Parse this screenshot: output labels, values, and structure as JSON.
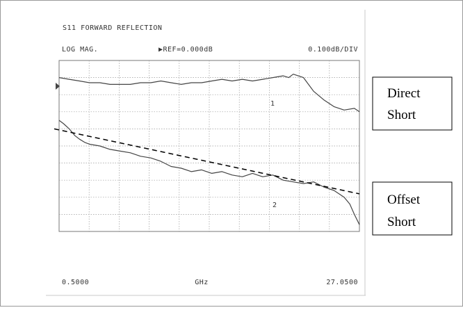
{
  "header": {
    "title": "S11 FORWARD REFLECTION",
    "format": "LOG MAG.",
    "reference": "▶REF=0.000dB",
    "scale": "0.100dB/DIV"
  },
  "footer": {
    "start": "0.5000",
    "unit": "GHz",
    "stop": "27.0500"
  },
  "callouts": {
    "direct": [
      "Direct",
      "Short"
    ],
    "offset": [
      "Offset",
      "Short"
    ]
  },
  "chart_data": {
    "type": "line",
    "title": "S11 FORWARD REFLECTION",
    "xlabel": "GHz",
    "ylabel": "LOG MAG.",
    "xlim": [
      0.5,
      27.05
    ],
    "ylim": [
      -0.9,
      0.1
    ],
    "grid": true,
    "series": [
      {
        "name": "1",
        "marker_label": "1",
        "x": [
          0.5,
          1.4,
          2.3,
          3.2,
          4.1,
          5.0,
          5.9,
          6.8,
          7.7,
          8.6,
          9.5,
          10.4,
          11.3,
          12.2,
          13.1,
          14.0,
          14.9,
          15.8,
          16.7,
          17.6,
          18.5,
          19.4,
          20.3,
          20.8,
          21.2,
          22.1,
          23.0,
          23.9,
          24.8,
          25.7,
          26.6,
          27.05
        ],
        "y": [
          0.0,
          -0.01,
          -0.02,
          -0.03,
          -0.03,
          -0.04,
          -0.04,
          -0.04,
          -0.03,
          -0.03,
          -0.02,
          -0.03,
          -0.04,
          -0.03,
          -0.03,
          -0.02,
          -0.01,
          -0.02,
          -0.01,
          -0.02,
          -0.01,
          0.0,
          0.01,
          0.0,
          0.02,
          0.0,
          -0.08,
          -0.13,
          -0.17,
          -0.19,
          -0.18,
          -0.2
        ]
      },
      {
        "name": "2",
        "marker_label": "2",
        "x": [
          0.5,
          0.9,
          1.4,
          1.9,
          2.3,
          2.8,
          3.2,
          4.1,
          5.0,
          5.9,
          6.8,
          7.7,
          8.6,
          9.5,
          10.4,
          11.3,
          12.2,
          13.1,
          14.0,
          14.9,
          15.8,
          16.7,
          17.6,
          18.5,
          19.4,
          20.3,
          21.2,
          22.1,
          23.0,
          23.9,
          24.8,
          25.7,
          26.2,
          26.6,
          27.05
        ],
        "y": [
          -0.25,
          -0.27,
          -0.3,
          -0.34,
          -0.36,
          -0.38,
          -0.39,
          -0.4,
          -0.42,
          -0.43,
          -0.44,
          -0.46,
          -0.47,
          -0.49,
          -0.52,
          -0.53,
          -0.55,
          -0.54,
          -0.56,
          -0.55,
          -0.57,
          -0.58,
          -0.56,
          -0.58,
          -0.57,
          -0.6,
          -0.61,
          -0.62,
          -0.61,
          -0.64,
          -0.66,
          -0.7,
          -0.74,
          -0.8,
          -0.86
        ]
      },
      {
        "kind": "dashed-trend",
        "x": [
          -1.5,
          27.05
        ],
        "y": [
          -0.3,
          -0.68
        ]
      }
    ]
  }
}
